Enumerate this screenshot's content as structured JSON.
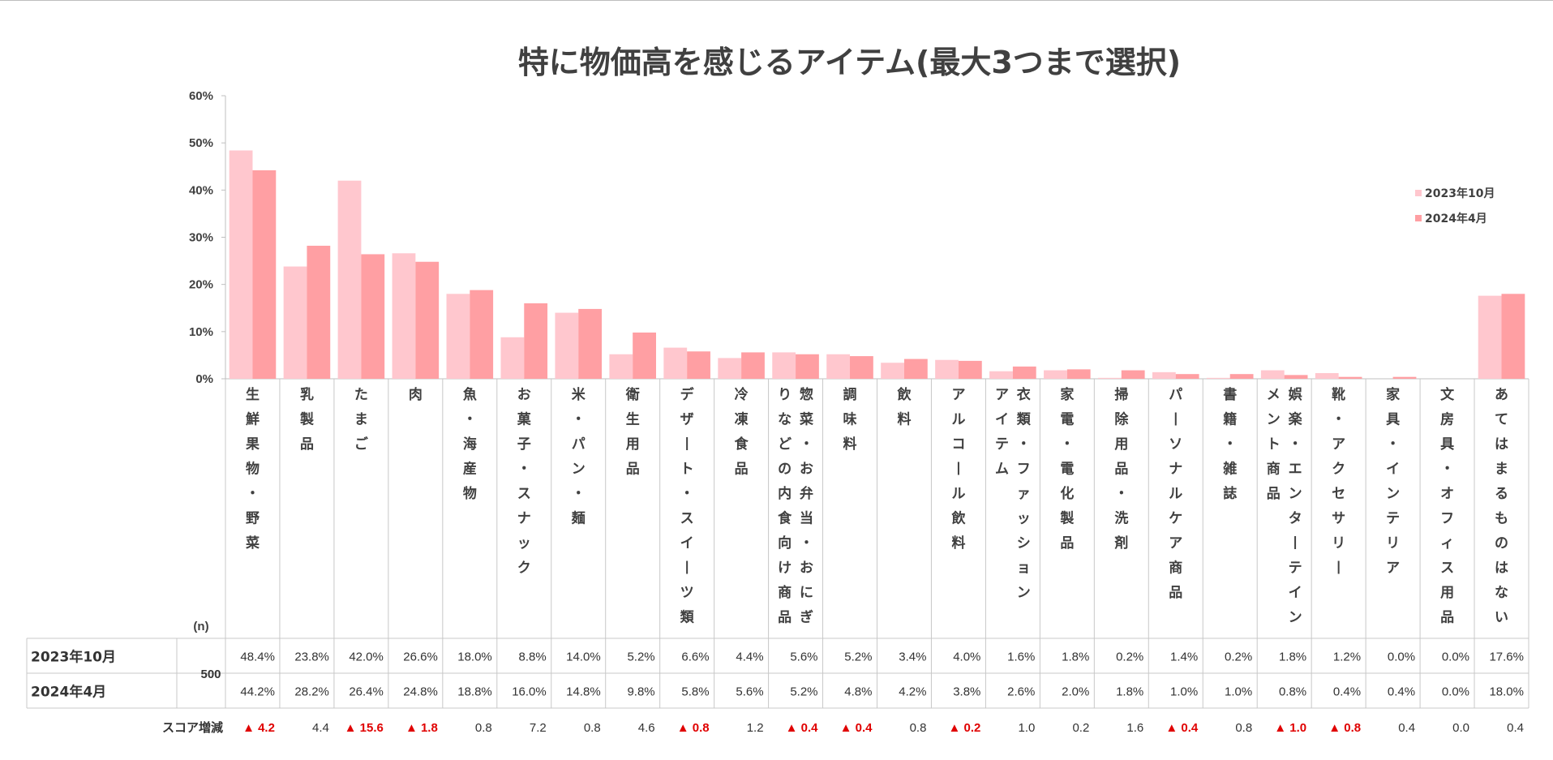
{
  "chart_data": {
    "type": "bar",
    "title": "特に物価高を感じるアイテム(最大3つまで選択)",
    "categories": [
      "生鮮果物・野菜",
      "乳製品",
      "たまご",
      "肉",
      "魚・海産物",
      "お菓子・スナック",
      "米・パン・麺",
      "衛生用品",
      "デザート・スイーツ類",
      "冷凍食品",
      "惣菜・お弁当・おにぎりなどの内食向け商品",
      "調味料",
      "飲料",
      "アルコール飲料",
      "衣類・ファッションアイテム",
      "家電・電化製品",
      "掃除用品・洗剤",
      "パーソナルケア商品",
      "書籍・雑誌",
      "娯楽・エンターテインメント商品",
      "靴・アクセサリー",
      "家具・インテリア",
      "文房具・オフィス用品",
      "あてはまるものはない"
    ],
    "category_columns": [
      [
        "生鮮果物・野菜"
      ],
      [
        "乳製品"
      ],
      [
        "たまご"
      ],
      [
        "肉"
      ],
      [
        "魚・海産物"
      ],
      [
        "お菓子・スナック"
      ],
      [
        "米・パン・麺"
      ],
      [
        "衛生用品"
      ],
      [
        "デザート・スイーツ類"
      ],
      [
        "冷凍食品"
      ],
      [
        "惣菜・お弁当・おにぎ",
        "りなどの内食向け商品"
      ],
      [
        "調味料"
      ],
      [
        "飲料"
      ],
      [
        "アルコール飲料"
      ],
      [
        "衣類・ファッション",
        "アイテム"
      ],
      [
        "家電・電化製品"
      ],
      [
        "掃除用品・洗剤"
      ],
      [
        "パーソナルケア商品"
      ],
      [
        "書籍・雑誌"
      ],
      [
        "娯楽・エンターテイン",
        "メント商品"
      ],
      [
        "靴・アクセサリー"
      ],
      [
        "家具・インテリア"
      ],
      [
        "文房具・オフィス用品"
      ],
      [
        "あてはまるものはない"
      ]
    ],
    "series": [
      {
        "name": "2023年10月",
        "color": "#ffc7ce",
        "values": [
          48.4,
          23.8,
          42.0,
          26.6,
          18.0,
          8.8,
          14.0,
          5.2,
          6.6,
          4.4,
          5.6,
          5.2,
          3.4,
          4.0,
          1.6,
          1.8,
          0.2,
          1.4,
          0.2,
          1.8,
          1.2,
          0.0,
          0.0,
          17.6
        ]
      },
      {
        "name": "2024年4月",
        "color": "#ff9fa3",
        "values": [
          44.2,
          28.2,
          26.4,
          24.8,
          18.8,
          16.0,
          14.8,
          9.8,
          5.8,
          5.6,
          5.2,
          4.8,
          4.2,
          3.8,
          2.6,
          2.0,
          1.8,
          1.0,
          1.0,
          0.8,
          0.4,
          0.4,
          0.0,
          18.0
        ]
      }
    ],
    "ylim": [
      0,
      60
    ],
    "yticks": [
      "0%",
      "10%",
      "20%",
      "30%",
      "40%",
      "50%",
      "60%"
    ],
    "legend_position": "right",
    "table": {
      "n_header": "(n)",
      "n_value": "500",
      "rows": [
        {
          "label": "2023年10月",
          "cells": [
            "48.4%",
            "23.8%",
            "42.0%",
            "26.6%",
            "18.0%",
            "8.8%",
            "14.0%",
            "5.2%",
            "6.6%",
            "4.4%",
            "5.6%",
            "5.2%",
            "3.4%",
            "4.0%",
            "1.6%",
            "1.8%",
            "0.2%",
            "1.4%",
            "0.2%",
            "1.8%",
            "1.2%",
            "0.0%",
            "0.0%",
            "17.6%"
          ]
        },
        {
          "label": "2024年4月",
          "cells": [
            "44.2%",
            "28.2%",
            "26.4%",
            "24.8%",
            "18.8%",
            "16.0%",
            "14.8%",
            "9.8%",
            "5.8%",
            "5.6%",
            "5.2%",
            "4.8%",
            "4.2%",
            "3.8%",
            "2.6%",
            "2.0%",
            "1.8%",
            "1.0%",
            "1.0%",
            "0.8%",
            "0.4%",
            "0.4%",
            "0.0%",
            "18.0%"
          ]
        }
      ]
    },
    "score": {
      "label": "スコア増減",
      "values": [
        "▲ 4.2",
        "4.4",
        "▲ 15.6",
        "▲ 1.8",
        "0.8",
        "7.2",
        "0.8",
        "4.6",
        "▲ 0.8",
        "1.2",
        "▲ 0.4",
        "▲ 0.4",
        "0.8",
        "▲ 0.2",
        "1.0",
        "0.2",
        "1.6",
        "▲ 0.4",
        "0.8",
        "▲ 1.0",
        "▲ 0.8",
        "0.4",
        "0.0",
        "0.4"
      ],
      "negative_color": "#e00000",
      "positive_color": "#333333"
    }
  }
}
